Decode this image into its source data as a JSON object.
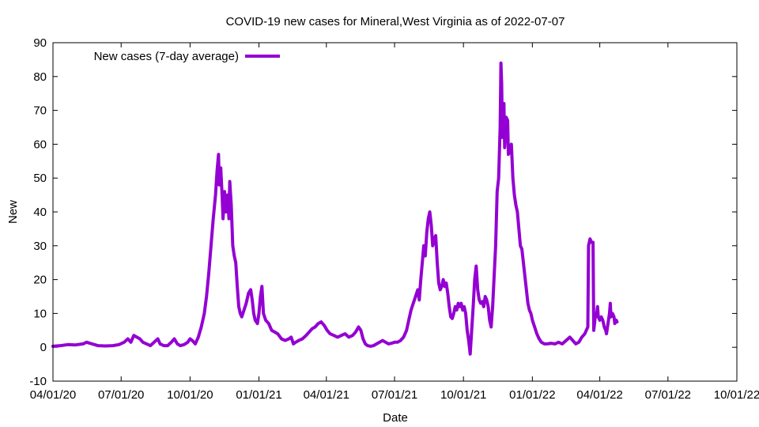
{
  "chart_data": {
    "type": "line",
    "title": "COVID-19 new cases for Mineral,West Virginia as of 2022-07-07",
    "xlabel": "Date",
    "ylabel": "New",
    "ylim": [
      -10,
      90
    ],
    "yticks": [
      -10,
      0,
      10,
      20,
      30,
      40,
      50,
      60,
      70,
      80,
      90
    ],
    "xlim_days": [
      0,
      913
    ],
    "xticks": [
      {
        "day": 0,
        "label": "04/01/20"
      },
      {
        "day": 91,
        "label": "07/01/20"
      },
      {
        "day": 183,
        "label": "10/01/20"
      },
      {
        "day": 275,
        "label": "01/01/21"
      },
      {
        "day": 365,
        "label": "04/01/21"
      },
      {
        "day": 456,
        "label": "07/01/21"
      },
      {
        "day": 548,
        "label": "10/01/21"
      },
      {
        "day": 640,
        "label": "01/01/22"
      },
      {
        "day": 730,
        "label": "04/01/22"
      },
      {
        "day": 821,
        "label": "07/01/22"
      },
      {
        "day": 913,
        "label": "10/01/22"
      }
    ],
    "grid": false,
    "legend_position": "top-left",
    "series": [
      {
        "name": "New cases (7-day average)",
        "color": "#9400D3",
        "points": [
          [
            0,
            0.3
          ],
          [
            10,
            0.5
          ],
          [
            20,
            0.8
          ],
          [
            30,
            0.7
          ],
          [
            40,
            1.0
          ],
          [
            45,
            1.5
          ],
          [
            52,
            1.0
          ],
          [
            60,
            0.5
          ],
          [
            70,
            0.4
          ],
          [
            80,
            0.5
          ],
          [
            88,
            0.8
          ],
          [
            95,
            1.5
          ],
          [
            100,
            2.5
          ],
          [
            104,
            1.5
          ],
          [
            108,
            3.5
          ],
          [
            112,
            3.0
          ],
          [
            116,
            2.5
          ],
          [
            120,
            1.5
          ],
          [
            125,
            1.0
          ],
          [
            130,
            0.5
          ],
          [
            135,
            1.5
          ],
          [
            140,
            2.5
          ],
          [
            143,
            1.0
          ],
          [
            148,
            0.5
          ],
          [
            153,
            0.5
          ],
          [
            158,
            1.5
          ],
          [
            162,
            2.5
          ],
          [
            166,
            1.0
          ],
          [
            170,
            0.5
          ],
          [
            175,
            0.8
          ],
          [
            180,
            1.5
          ],
          [
            183,
            2.5
          ],
          [
            186,
            2.0
          ],
          [
            190,
            1.0
          ],
          [
            194,
            3.0
          ],
          [
            198,
            6.0
          ],
          [
            202,
            10.0
          ],
          [
            205,
            15.0
          ],
          [
            208,
            22.0
          ],
          [
            211,
            30.0
          ],
          [
            214,
            38.0
          ],
          [
            217,
            45.0
          ],
          [
            219,
            52.0
          ],
          [
            221,
            57.0
          ],
          [
            222,
            48.0
          ],
          [
            224,
            53.0
          ],
          [
            226,
            44.0
          ],
          [
            227,
            38.0
          ],
          [
            229,
            46.0
          ],
          [
            231,
            40.0
          ],
          [
            233,
            45.0
          ],
          [
            235,
            38.0
          ],
          [
            236,
            49.0
          ],
          [
            238,
            42.0
          ],
          [
            240,
            30.0
          ],
          [
            242,
            27.0
          ],
          [
            244,
            25.0
          ],
          [
            246,
            18.0
          ],
          [
            248,
            12.0
          ],
          [
            250,
            10.0
          ],
          [
            252,
            9.0
          ],
          [
            255,
            11.0
          ],
          [
            258,
            13.0
          ],
          [
            261,
            16.0
          ],
          [
            264,
            17.0
          ],
          [
            266,
            14.0
          ],
          [
            268,
            10.0
          ],
          [
            270,
            8.0
          ],
          [
            273,
            7.0
          ],
          [
            275,
            10.0
          ],
          [
            277,
            15.0
          ],
          [
            279,
            18.0
          ],
          [
            281,
            10.0
          ],
          [
            284,
            8.0
          ],
          [
            288,
            7.0
          ],
          [
            292,
            5.0
          ],
          [
            296,
            4.5
          ],
          [
            300,
            4.0
          ],
          [
            305,
            2.5
          ],
          [
            310,
            2.0
          ],
          [
            315,
            2.5
          ],
          [
            318,
            3.0
          ],
          [
            321,
            1.0
          ],
          [
            324,
            1.5
          ],
          [
            328,
            2.0
          ],
          [
            333,
            2.5
          ],
          [
            338,
            3.5
          ],
          [
            342,
            4.5
          ],
          [
            346,
            5.5
          ],
          [
            350,
            6.0
          ],
          [
            354,
            7.0
          ],
          [
            358,
            7.5
          ],
          [
            362,
            6.5
          ],
          [
            366,
            5.0
          ],
          [
            370,
            4.0
          ],
          [
            375,
            3.5
          ],
          [
            380,
            3.0
          ],
          [
            385,
            3.5
          ],
          [
            390,
            4.0
          ],
          [
            395,
            3.0
          ],
          [
            400,
            3.5
          ],
          [
            404,
            4.5
          ],
          [
            408,
            6.0
          ],
          [
            411,
            5.0
          ],
          [
            414,
            2.5
          ],
          [
            417,
            1.0
          ],
          [
            420,
            0.5
          ],
          [
            424,
            0.3
          ],
          [
            428,
            0.5
          ],
          [
            432,
            1.0
          ],
          [
            436,
            1.5
          ],
          [
            440,
            2.0
          ],
          [
            444,
            1.5
          ],
          [
            448,
            1.0
          ],
          [
            452,
            1.2
          ],
          [
            456,
            1.5
          ],
          [
            460,
            1.5
          ],
          [
            464,
            2.0
          ],
          [
            468,
            3.0
          ],
          [
            472,
            5.0
          ],
          [
            475,
            8.0
          ],
          [
            478,
            11.0
          ],
          [
            481,
            13.0
          ],
          [
            484,
            15.0
          ],
          [
            487,
            17.0
          ],
          [
            489,
            14.0
          ],
          [
            491,
            20.0
          ],
          [
            493,
            25.0
          ],
          [
            495,
            30.0
          ],
          [
            497,
            27.0
          ],
          [
            499,
            34.0
          ],
          [
            501,
            38.0
          ],
          [
            503,
            40.0
          ],
          [
            505,
            36.0
          ],
          [
            507,
            30.0
          ],
          [
            509,
            32.0
          ],
          [
            511,
            33.0
          ],
          [
            513,
            25.0
          ],
          [
            515,
            19.0
          ],
          [
            517,
            17.0
          ],
          [
            519,
            18.0
          ],
          [
            521,
            20.0
          ],
          [
            523,
            18.0
          ],
          [
            525,
            19.0
          ],
          [
            527,
            16.0
          ],
          [
            529,
            12.0
          ],
          [
            531,
            9.0
          ],
          [
            533,
            8.5
          ],
          [
            535,
            10.0
          ],
          [
            537,
            12.0
          ],
          [
            539,
            11.0
          ],
          [
            541,
            13.0
          ],
          [
            543,
            12.0
          ],
          [
            545,
            13.0
          ],
          [
            547,
            11.0
          ],
          [
            549,
            12.0
          ],
          [
            551,
            10.0
          ],
          [
            553,
            5.0
          ],
          [
            555,
            2.0
          ],
          [
            557,
            -2.0
          ],
          [
            559,
            5.0
          ],
          [
            561,
            12.0
          ],
          [
            563,
            20.0
          ],
          [
            565,
            24.0
          ],
          [
            567,
            17.0
          ],
          [
            569,
            14.0
          ],
          [
            571,
            13.0
          ],
          [
            573,
            13.5
          ],
          [
            575,
            12.0
          ],
          [
            577,
            15.0
          ],
          [
            579,
            14.0
          ],
          [
            581,
            12.0
          ],
          [
            583,
            8.0
          ],
          [
            585,
            6.0
          ],
          [
            587,
            12.0
          ],
          [
            589,
            21.0
          ],
          [
            591,
            30.0
          ],
          [
            593,
            46.0
          ],
          [
            595,
            50.0
          ],
          [
            597,
            65.0
          ],
          [
            598,
            84.0
          ],
          [
            599,
            78.0
          ],
          [
            600,
            62.0
          ],
          [
            602,
            72.0
          ],
          [
            603,
            59.0
          ],
          [
            605,
            68.0
          ],
          [
            607,
            67.0
          ],
          [
            608,
            57.0
          ],
          [
            610,
            58.0
          ],
          [
            612,
            60.0
          ],
          [
            614,
            50.0
          ],
          [
            616,
            45.0
          ],
          [
            618,
            42.0
          ],
          [
            620,
            40.0
          ],
          [
            622,
            35.0
          ],
          [
            624,
            30.0
          ],
          [
            626,
            29.0
          ],
          [
            628,
            25.0
          ],
          [
            630,
            21.0
          ],
          [
            632,
            17.0
          ],
          [
            634,
            13.0
          ],
          [
            636,
            11.0
          ],
          [
            638,
            10.0
          ],
          [
            640,
            8.0
          ],
          [
            643,
            6.0
          ],
          [
            646,
            4.0
          ],
          [
            649,
            2.5
          ],
          [
            652,
            1.5
          ],
          [
            656,
            1.0
          ],
          [
            660,
            1.0
          ],
          [
            665,
            1.2
          ],
          [
            670,
            1.0
          ],
          [
            675,
            1.5
          ],
          [
            680,
            1.0
          ],
          [
            685,
            2.0
          ],
          [
            690,
            3.0
          ],
          [
            694,
            2.0
          ],
          [
            698,
            1.0
          ],
          [
            702,
            1.5
          ],
          [
            706,
            3.0
          ],
          [
            710,
            4.0
          ],
          [
            714,
            6.0
          ],
          [
            715,
            30.0
          ],
          [
            717,
            32.0
          ],
          [
            719,
            31.0
          ],
          [
            721,
            31.0
          ],
          [
            722,
            5.0
          ],
          [
            724,
            9.0
          ],
          [
            726,
            10.0
          ],
          [
            727,
            12.0
          ],
          [
            728,
            9.0
          ],
          [
            730,
            8.0
          ],
          [
            732,
            9.0
          ],
          [
            734,
            8.0
          ],
          [
            736,
            6.0
          ],
          [
            738,
            5.0
          ],
          [
            739,
            4.0
          ],
          [
            741,
            7.0
          ],
          [
            743,
            10.0
          ],
          [
            744,
            13.0
          ],
          [
            745,
            9.0
          ],
          [
            747,
            10.0
          ],
          [
            749,
            9.0
          ],
          [
            750,
            7.0
          ],
          [
            752,
            8.0
          ],
          [
            753,
            7.5
          ]
        ]
      }
    ]
  }
}
